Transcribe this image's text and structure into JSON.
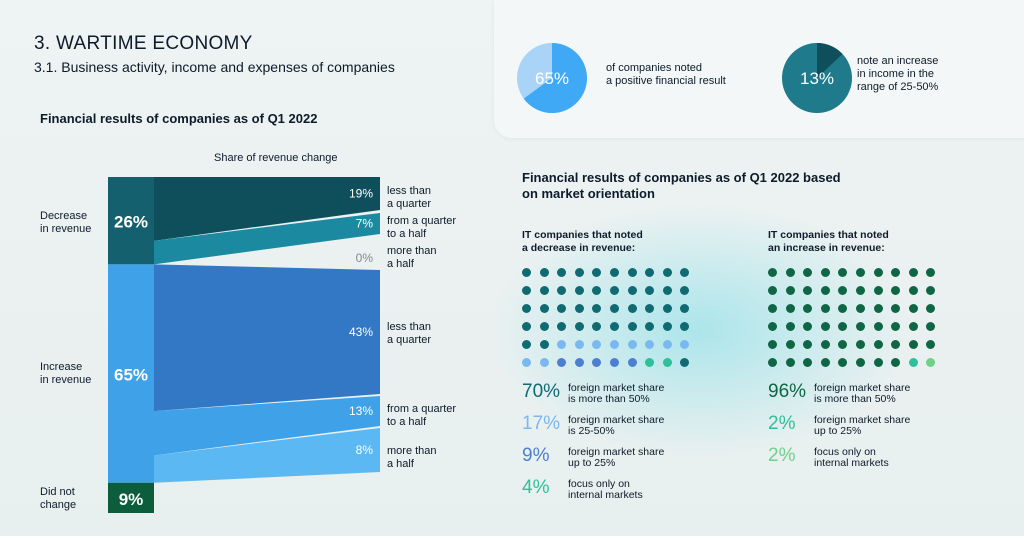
{
  "header": {
    "section_title": "3. WARTIME ECONOMY",
    "section_subtitle": "3.1. Business activity, income and expenses of companies"
  },
  "stats": [
    {
      "value": "65%",
      "text_l1": "of companies noted",
      "text_l2": "a positive financial result",
      "text_l3": "",
      "fraction": 0.65,
      "color": "#3fa9f5"
    },
    {
      "value": "13%",
      "text_l1": "note an increase",
      "text_l2": "in income in the",
      "text_l3": "range of 25-50%",
      "fraction": 0.13,
      "color": "#1f7a8c"
    }
  ],
  "colors": {
    "decrease": "#14606e",
    "decrease_dark": "#0f4f5c",
    "increase": "#3fa2e8",
    "increase_dark": "#2d7fc0",
    "nochange": "#0b5d3b",
    "dot_dark": "#0f6a72",
    "dot_blue": "#7ab8ef",
    "dot_mid": "#4d7fd0",
    "dot_teal": "#2fbf9a",
    "dot_green_dark": "#0e6645",
    "dot_green_light": "#6fd08a"
  },
  "chart_data": [
    {
      "type": "bar",
      "title": "Financial results of companies as of Q1 2022",
      "axis_label": "Share of revenue change",
      "categories": [
        {
          "name_l1": "Decrease",
          "name_l2": "in revenue",
          "value": 26,
          "label": "26%",
          "breakdown": [
            {
              "pct": 19,
              "label": "19%",
              "desc_l1": "less than",
              "desc_l2": "a quarter"
            },
            {
              "pct": 7,
              "label": "7%",
              "desc_l1": "from a quarter",
              "desc_l2": "to a half"
            },
            {
              "pct": 0,
              "label": "0%",
              "desc_l1": "more than",
              "desc_l2": "a half"
            }
          ]
        },
        {
          "name_l1": "Increase",
          "name_l2": "in revenue",
          "value": 65,
          "label": "65%",
          "breakdown": [
            {
              "pct": 43,
              "label": "43%",
              "desc_l1": "less than",
              "desc_l2": "a quarter"
            },
            {
              "pct": 13,
              "label": "13%",
              "desc_l1": "from a quarter",
              "desc_l2": "to a half"
            },
            {
              "pct": 8,
              "label": "8%",
              "desc_l1": "more than",
              "desc_l2": "a half"
            }
          ]
        },
        {
          "name_l1": "Did not",
          "name_l2": "change",
          "value": 9,
          "label": "9%",
          "breakdown": []
        }
      ]
    },
    {
      "type": "waffle",
      "title_l1": "Financial results of companies as of Q1 2022 based",
      "title_l2": "on market orientation",
      "groups": [
        {
          "title_l1": "IT companies that noted",
          "title_l2": "a decrease in revenue:",
          "segments": [
            {
              "pct": 70,
              "label": "70%",
              "desc_l1": "foreign market share",
              "desc_l2": "is more than 50%",
              "color": "#0f6a72"
            },
            {
              "pct": 17,
              "label": "17%",
              "desc_l1": "foreign market share",
              "desc_l2": "is 25-50%",
              "color": "#7ab8ef"
            },
            {
              "pct": 9,
              "label": "9%",
              "desc_l1": "foreign market share",
              "desc_l2": "up to 25%",
              "color": "#4d7fd0"
            },
            {
              "pct": 4,
              "label": "4%",
              "desc_l1": "focus only on",
              "desc_l2": "internal markets",
              "color": "#2fbf9a"
            }
          ]
        },
        {
          "title_l1": "IT companies that noted",
          "title_l2": "an increase in revenue:",
          "segments": [
            {
              "pct": 96,
              "label": "96%",
              "desc_l1": "foreign market share",
              "desc_l2": "is more than 50%",
              "color": "#0e6645"
            },
            {
              "pct": 2,
              "label": "2%",
              "desc_l1": "foreign market share",
              "desc_l2": "up to 25%",
              "color": "#2fbf9a"
            },
            {
              "pct": 2,
              "label": "2%",
              "desc_l1": "focus only on",
              "desc_l2": "internal markets",
              "color": "#6fd08a"
            }
          ]
        }
      ]
    }
  ]
}
